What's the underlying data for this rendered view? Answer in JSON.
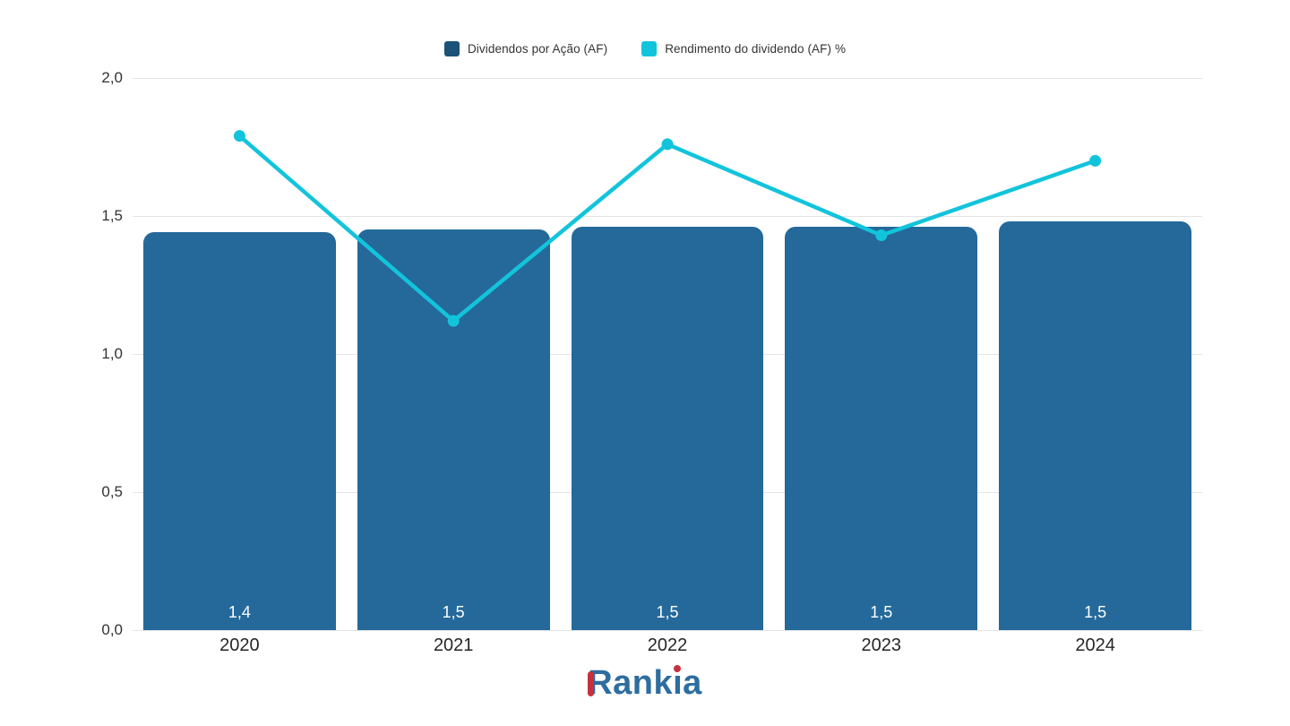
{
  "legend": {
    "items": [
      {
        "label": "Dividendos por Ação (AF)",
        "color": "#1b5278",
        "series_type": "bar"
      },
      {
        "label": "Rendimento do dividendo (AF) %",
        "color": "#12c4db",
        "series_type": "line"
      }
    ]
  },
  "chart_data": {
    "type": "combo",
    "categories": [
      "2020",
      "2021",
      "2022",
      "2023",
      "2024"
    ],
    "series": [
      {
        "name": "Dividendos por Ação (AF)",
        "type": "bar",
        "values": [
          1.44,
          1.45,
          1.46,
          1.46,
          1.48
        ],
        "data_labels": [
          "1,4",
          "1,5",
          "1,5",
          "1,5",
          "1,5"
        ],
        "color": "#24699a"
      },
      {
        "name": "Rendimento do dividendo (AF) %",
        "type": "line",
        "values": [
          1.79,
          1.12,
          1.76,
          1.43,
          1.7
        ],
        "color": "#12c4db"
      }
    ],
    "y_axis": {
      "min": 0,
      "max": 2,
      "tick_values": [
        0,
        0.5,
        1,
        1.5,
        2
      ],
      "tick_labels": [
        "0,0",
        "0,5",
        "1,0",
        "1,5",
        "2,0"
      ]
    },
    "grid": true,
    "legend_position": "top",
    "decimal_separator": ","
  },
  "colors": {
    "gridline": "#e4e4e4",
    "tick_text": "#333333",
    "xlabel_text": "#262626",
    "bar_label_text": "#ffffff"
  },
  "logo": {
    "part1": "Rank",
    "i_char": "ı",
    "part2": "a",
    "blue": "#2e6da0",
    "red": "#c4323f"
  }
}
